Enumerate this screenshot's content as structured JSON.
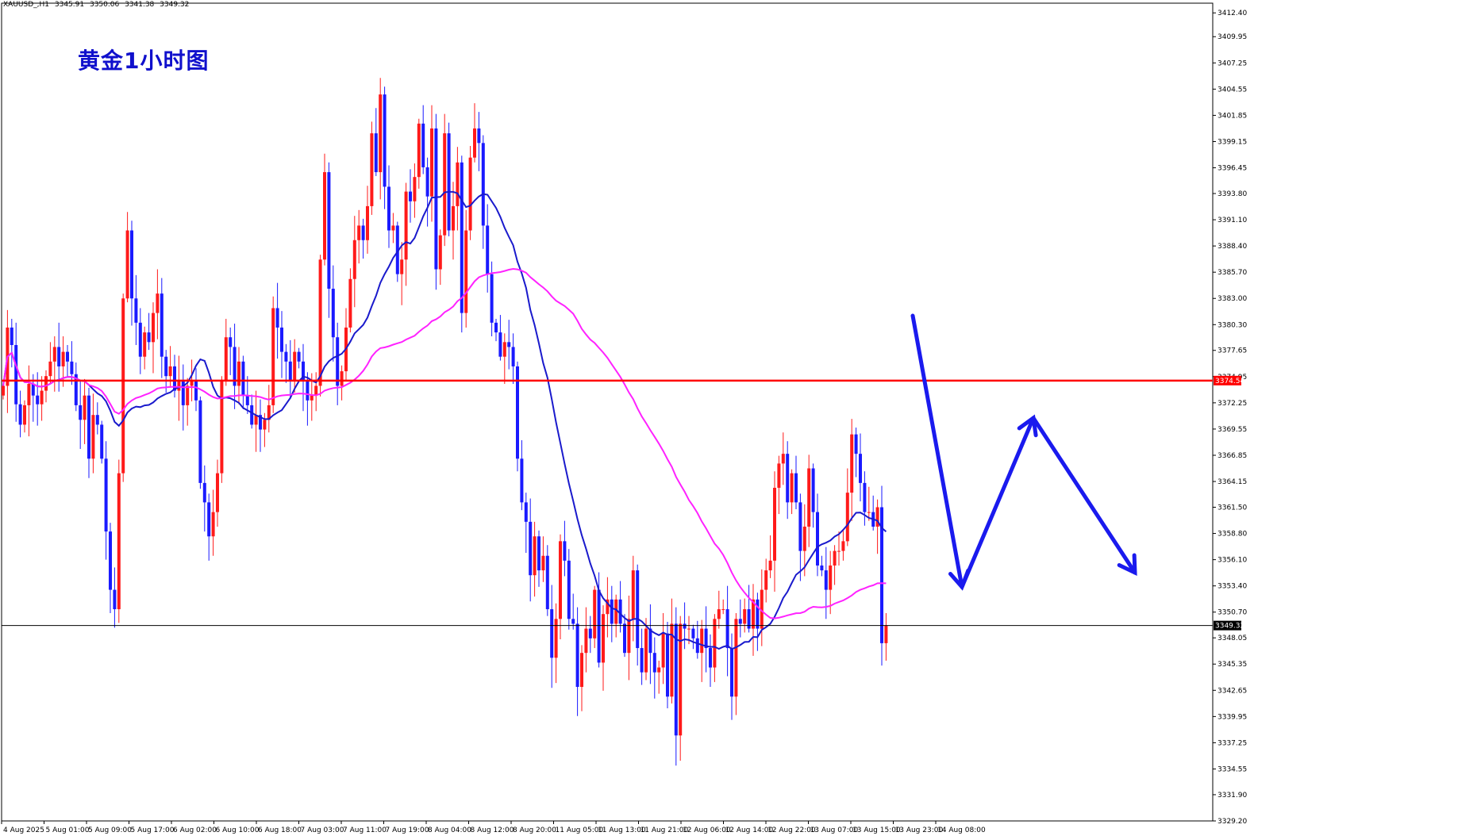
{
  "header": {
    "symbol": "XAUUSD_,H1",
    "open": "3345.91",
    "high": "3350.06",
    "low": "3341.38",
    "close": "3349.32"
  },
  "chart_title": "黄金1小时图",
  "chart_data": {
    "type": "candlestick",
    "ylim": [
      3329.2,
      3413.4
    ],
    "y_ticks": [
      "3412.40",
      "3409.95",
      "3407.25",
      "3404.55",
      "3401.85",
      "3399.15",
      "3396.45",
      "3393.80",
      "3391.10",
      "3388.40",
      "3385.70",
      "3383.00",
      "3380.30",
      "3377.65",
      "3374.95",
      "3372.25",
      "3369.55",
      "3366.85",
      "3364.15",
      "3361.50",
      "3358.80",
      "3356.10",
      "3353.40",
      "3350.70",
      "3348.05",
      "3345.35",
      "3342.65",
      "3339.95",
      "3337.25",
      "3334.55",
      "3331.90",
      "3329.20"
    ],
    "x_ticks": [
      "4 Aug 2025",
      "5 Aug 01:00",
      "5 Aug 09:00",
      "5 Aug 17:00",
      "6 Aug 02:00",
      "6 Aug 10:00",
      "6 Aug 18:00",
      "7 Aug 03:00",
      "7 Aug 11:00",
      "7 Aug 19:00",
      "8 Aug 04:00",
      "8 Aug 12:00",
      "8 Aug 20:00",
      "11 Aug 05:00",
      "11 Aug 13:00",
      "11 Aug 21:00",
      "12 Aug 06:00",
      "12 Aug 14:00",
      "12 Aug 22:00",
      "13 Aug 07:00",
      "13 Aug 15:00",
      "13 Aug 23:00",
      "14 Aug 08:00"
    ],
    "resistance_level": 3374.54,
    "resistance_label": "3374.54",
    "current_price": 3349.32,
    "current_label": "3349.32",
    "candle_up_color": "#ff1a1a",
    "candle_down_color": "#1a1aff",
    "ma_fast_color": "#1a1acc",
    "ma_slow_color": "#ff22ff",
    "closes": [
      3374.0,
      3380.0,
      3378.2,
      3372.1,
      3370.0,
      3372.0,
      3374.2,
      3373.0,
      3372.1,
      3373.5,
      3375.0,
      3376.5,
      3378.0,
      3376.0,
      3377.5,
      3376.5,
      3375.2,
      3372.0,
      3370.5,
      3373.0,
      3366.5,
      3371.0,
      3370.0,
      3366.5,
      3359.0,
      3353.0,
      3351.0,
      3365.0,
      3383.0,
      3390.0,
      3383.0,
      3380.5,
      3377.0,
      3379.5,
      3378.5,
      3381.5,
      3383.5,
      3377.0,
      3375.0,
      3376.0,
      3373.5,
      3374.5,
      3372.0,
      3374.0,
      3374.5,
      3372.5,
      3364.0,
      3362.0,
      3358.5,
      3361.0,
      3365.0,
      3374.5,
      3379.0,
      3378.0,
      3374.0,
      3376.5,
      3373.0,
      3372.0,
      3370.0,
      3371.0,
      3369.5,
      3370.5,
      3372.0,
      3382.0,
      3380.0,
      3377.5,
      3376.5,
      3374.5,
      3377.5,
      3376.5,
      3374.5,
      3372.5,
      3373.0,
      3374.0,
      3387.0,
      3396.0,
      3384.0,
      3379.0,
      3374.0,
      3375.5,
      3380.0,
      3385.0,
      3389.0,
      3390.5,
      3389.0,
      3392.5,
      3400.0,
      3396.0,
      3404.0,
      3394.5,
      3390.0,
      3390.5,
      3385.5,
      3387.0,
      3394.0,
      3393.0,
      3395.5,
      3401.0,
      3396.5,
      3393.5,
      3400.5,
      3386.0,
      3389.5,
      3400.0,
      3390.0,
      3392.5,
      3397.0,
      3381.5,
      3390.0,
      3397.5,
      3400.5,
      3399.0,
      3390.5,
      3385.5,
      3380.5,
      3379.5,
      3377.0,
      3378.5,
      3378.0,
      3376.0,
      3366.5,
      3362.0,
      3360.0,
      3354.5,
      3358.5,
      3355.0,
      3356.5,
      3351.0,
      3346.0,
      3350.0,
      3358.0,
      3356.0,
      3350.0,
      3349.5,
      3343.0,
      3346.5,
      3349.0,
      3348.0,
      3353.0,
      3345.5,
      3350.5,
      3352.0,
      3349.5,
      3352.0,
      3349.5,
      3346.5,
      3350.0,
      3355.0,
      3347.0,
      3344.5,
      3349.0,
      3346.5,
      3344.5,
      3345.0,
      3348.5,
      3342.0,
      3349.5,
      3338.0,
      3349.5,
      3349.0,
      3349.0,
      3348.0,
      3346.5,
      3349.0,
      3347.0,
      3345.0,
      3350.0,
      3351.0,
      3351.0,
      3347.0,
      3342.0,
      3350.0,
      3349.5,
      3351.0,
      3349.0,
      3352.0,
      3349.0,
      3353.0,
      3355.0,
      3356.0,
      3363.5,
      3366.0,
      3367.0,
      3362.0,
      3365.0,
      3362.0,
      3357.0,
      3359.5,
      3365.5,
      3361.0,
      3355.5,
      3355.0,
      3353.0,
      3355.5,
      3357.0,
      3357.0,
      3358.0,
      3363.0,
      3369.0,
      3367.0,
      3364.0,
      3361.0,
      3361.0,
      3359.5,
      3361.5,
      3347.5,
      3349.3
    ],
    "annotation": "projected path arrows: drop then rebound then decline"
  }
}
